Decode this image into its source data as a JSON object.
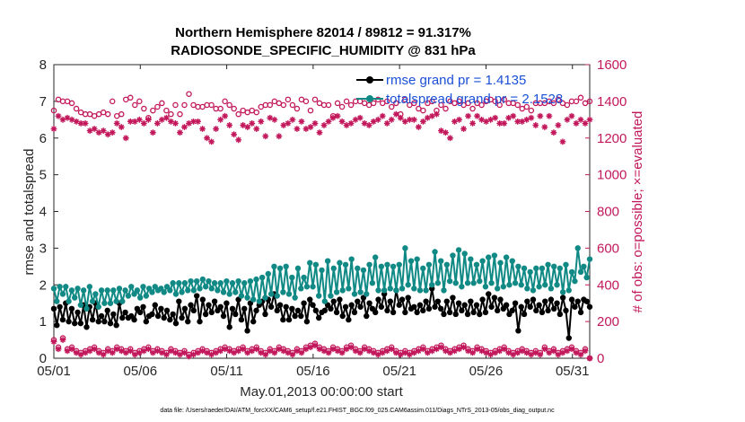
{
  "chart_data": {
    "type": "line",
    "title_line1": "Northern Hemisphere 82014 / 89812 = 91.317%",
    "title_line2": "RADIOSONDE_SPECIFIC_HUMIDITY @ 831 hPa",
    "xlabel": "May.01,2013 00:00:00 start",
    "ylabel_left": "rmse and totalspread",
    "ylabel_right": "# of obs: o=possible; ×=evaluated",
    "footer": "data file: /Users/raeder/DAI/ATM_forcXX/CAM6_setup/f.e21.FHIST_BGC.f09_025.CAM6assim.011/Diags_NTrS_2013-05/obs_diag_output.nc",
    "x_range": [
      1,
      32
    ],
    "ylim_left": [
      0,
      8
    ],
    "ylim_right": [
      0,
      1600
    ],
    "x_ticks": [
      {
        "value": 1,
        "label": "05/01"
      },
      {
        "value": 6,
        "label": "05/06"
      },
      {
        "value": 11,
        "label": "05/11"
      },
      {
        "value": 16,
        "label": "05/16"
      },
      {
        "value": 21,
        "label": "05/21"
      },
      {
        "value": 26,
        "label": "05/26"
      },
      {
        "value": 31,
        "label": "05/31"
      }
    ],
    "y_ticks_left": [
      "0",
      "1",
      "2",
      "3",
      "4",
      "5",
      "6",
      "7",
      "8"
    ],
    "y_ticks_right": [
      "0",
      "200",
      "400",
      "600",
      "800",
      "1000",
      "1200",
      "1400",
      "1600"
    ],
    "legend": [
      {
        "label": "rmse grand pr = 1.4135",
        "color": "#000000"
      },
      {
        "label": "totalspread grand pr = 2.1528",
        "color": "#118a86"
      }
    ],
    "series": [
      {
        "name": "rmse",
        "axis": "left",
        "color": "#000000",
        "values": [
          1.35,
          0.9,
          1.4,
          1.05,
          1.5,
          1.0,
          1.35,
          0.95,
          1.25,
          0.95,
          1.45,
          0.85,
          1.4,
          1.05,
          1.5,
          1.0,
          1.15,
          1.0,
          1.3,
          0.95,
          1.2,
          0.9,
          1.5,
          1.1,
          1.25,
          1.1,
          1.15,
          1.05,
          1.35,
          1.25,
          1.4,
          1.0,
          1.15,
          1.2,
          1.45,
          1.15,
          1.35,
          1.1,
          1.3,
          1.05,
          1.2,
          0.95,
          1.55,
          1.1,
          1.35,
          1.0,
          1.45,
          1.3,
          1.7,
          1.0,
          1.6,
          1.2,
          1.45,
          1.25,
          1.55,
          1.3,
          1.4,
          1.15,
          1.5,
          0.85,
          1.35,
          1.2,
          1.6,
          1.05,
          1.35,
          0.75,
          1.5,
          1.0,
          1.3,
          1.45,
          1.55,
          1.2,
          1.6,
          1.4,
          1.75,
          1.3,
          1.45,
          1.05,
          1.4,
          1.05,
          1.35,
          1.15,
          1.3,
          1.15,
          1.5,
          1.0,
          1.6,
          1.45,
          1.3,
          1.1,
          1.25,
          1.3,
          1.45,
          1.35,
          1.55,
          1.25,
          1.6,
          1.15,
          1.4,
          1.05,
          1.45,
          1.25,
          1.55,
          1.4,
          1.65,
          1.15,
          1.5,
          1.35,
          1.25,
          1.6,
          1.4,
          1.75,
          1.3,
          1.55,
          1.25,
          1.85,
          1.45,
          1.6,
          1.25,
          1.65,
          1.35,
          1.4,
          1.25,
          1.45,
          1.3,
          1.55,
          1.35,
          1.9,
          1.4,
          1.55,
          1.35,
          1.2,
          1.55,
          1.25,
          1.65,
          1.2,
          1.5,
          1.3,
          1.45,
          1.2,
          1.55,
          1.25,
          1.45,
          1.2,
          1.6,
          1.25,
          1.75,
          1.4,
          1.65,
          1.3,
          1.6,
          1.35,
          1.45,
          1.2,
          1.3,
          1.5,
          0.75,
          1.4,
          1.2,
          1.55,
          1.4,
          1.6,
          1.3,
          1.45,
          1.25,
          1.55,
          1.3,
          1.6,
          1.35,
          1.5,
          1.2,
          1.65,
          1.3,
          0.55,
          1.6,
          1.4,
          1.55,
          1.25,
          1.6,
          1.55,
          1.4
        ]
      },
      {
        "name": "totalspread",
        "axis": "left",
        "color": "#118a86",
        "values": [
          1.9,
          1.55,
          1.95,
          1.75,
          1.95,
          1.55,
          1.85,
          1.65,
          1.9,
          1.45,
          1.85,
          1.35,
          1.95,
          1.55,
          1.75,
          1.4,
          1.85,
          1.5,
          1.85,
          1.5,
          1.85,
          1.55,
          1.9,
          1.55,
          1.85,
          1.7,
          1.95,
          1.75,
          1.85,
          1.65,
          1.95,
          1.7,
          1.9,
          1.8,
          1.95,
          1.85,
          1.9,
          1.8,
          1.95,
          1.85,
          2.05,
          1.75,
          2.05,
          1.8,
          2.05,
          1.85,
          2.1,
          1.85,
          2.1,
          1.9,
          2.15,
          1.95,
          2.1,
          1.9,
          2.05,
          1.85,
          2.05,
          1.8,
          2.1,
          1.75,
          2.05,
          1.8,
          2.1,
          1.7,
          2.05,
          1.65,
          2.1,
          1.6,
          2.15,
          1.55,
          2.2,
          1.65,
          2.3,
          1.75,
          2.5,
          1.7,
          2.45,
          1.8,
          2.5,
          1.75,
          2.2,
          1.65,
          2.45,
          1.9,
          2.2,
          1.95,
          2.6,
          1.95,
          2.55,
          1.7,
          2.4,
          1.55,
          2.65,
          1.7,
          2.45,
          1.8,
          2.6,
          1.85,
          2.55,
          1.9,
          2.7,
          1.75,
          2.45,
          1.8,
          2.4,
          1.75,
          2.55,
          2.05,
          2.75,
          1.85,
          2.5,
          1.85,
          2.55,
          1.9,
          2.5,
          1.85,
          2.55,
          1.9,
          3.0,
          2.0,
          2.65,
          1.9,
          2.7,
          1.85,
          2.45,
          1.85,
          2.55,
          2.0,
          2.9,
          2.05,
          2.65,
          1.85,
          2.55,
          2.1,
          2.8,
          2.05,
          2.95,
          1.95,
          2.85,
          2.05,
          2.7,
          2.05,
          2.55,
          2.1,
          2.65,
          1.95,
          2.75,
          2.05,
          2.8,
          1.9,
          2.6,
          1.95,
          2.75,
          2.0,
          2.65,
          2.05,
          2.5,
          2.0,
          2.45,
          1.9,
          2.35,
          1.85,
          2.45,
          1.95,
          2.45,
          2.0,
          2.55,
          1.9,
          2.5,
          2.0,
          2.45,
          1.8,
          2.55,
          1.85,
          2.35,
          2.1,
          3.0,
          2.35,
          2.5,
          2.2,
          2.7
        ]
      },
      {
        "name": "possible",
        "axis": "right",
        "color": "#c2185b",
        "marker": "circle",
        "values": [
          1350,
          1410,
          1400,
          1400,
          1390,
          1360,
          1340,
          1330,
          1330,
          1320,
          1330,
          1340,
          1330,
          1400,
          1320,
          1330,
          1410,
          1420,
          1380,
          1400,
          1360,
          1310,
          1350,
          1370,
          1390,
          1350,
          1330,
          1380,
          1330,
          1380,
          1440,
          1380,
          1370,
          1370,
          1380,
          1380,
          1360,
          1360,
          1400,
          1380,
          1360,
          1330,
          1350,
          1340,
          1350,
          1340,
          1370,
          1380,
          1380,
          1400,
          1390,
          1380,
          1410,
          1380,
          1360,
          1410,
          1400,
          1350,
          1410,
          1390,
          1380,
          1380,
          1320,
          1390,
          1370,
          1400,
          1380,
          1400,
          1400,
          1390,
          1380,
          1390,
          1410,
          1390,
          1400,
          1370,
          1390,
          1330,
          1410,
          1380,
          1390,
          1360,
          1350,
          1390,
          1400,
          1350,
          1380,
          1360,
          1400,
          1390,
          1400,
          1380,
          1390,
          1360,
          1390,
          1380,
          1400,
          1410,
          1400,
          1380,
          1410,
          1390,
          1390,
          1380,
          1360,
          1370,
          1350,
          1390,
          1390,
          1390,
          1400,
          1390,
          1410,
          1390,
          1380,
          1400,
          1400,
          1420,
          1390,
          1400
        ]
      },
      {
        "name": "evaluated",
        "axis": "right",
        "color": "#c2185b",
        "marker": "asterisk",
        "values": [
          1250,
          1320,
          1300,
          1310,
          1300,
          1290,
          1280,
          1280,
          1240,
          1250,
          1230,
          1240,
          1220,
          1230,
          1280,
          1260,
          1200,
          1290,
          1290,
          1300,
          1280,
          1300,
          1230,
          1280,
          1300,
          1310,
          1290,
          1280,
          1230,
          1260,
          1280,
          1290,
          1290,
          1250,
          1200,
          1180,
          1250,
          1300,
          1320,
          1270,
          1220,
          1190,
          1270,
          1260,
          1280,
          1250,
          1290,
          1210,
          1310,
          1300,
          1210,
          1270,
          1280,
          1300,
          1250,
          1290,
          1250,
          1260,
          1280,
          1230,
          1270,
          1290,
          1310,
          1320,
          1290,
          1270,
          1280,
          1300,
          1310,
          1280,
          1270,
          1290,
          1300,
          1320,
          1280,
          1300,
          1330,
          1310,
          1290,
          1300,
          1300,
          1260,
          1290,
          1310,
          1320,
          1330,
          1240,
          1230,
          1200,
          1290,
          1300,
          1250,
          1320,
          1280,
          1320,
          1300,
          1290,
          1300,
          1310,
          1280,
          1280,
          1310,
          1320,
          1290,
          1290,
          1300,
          1310,
          1270,
          1320,
          1260,
          1320,
          1230,
          1270,
          1180,
          1300,
          1320,
          1280,
          1300,
          1280,
          1300
        ]
      },
      {
        "name": "possible_minus_evaluated_possible",
        "axis": "right",
        "color": "#c2185b",
        "marker": "circle",
        "values": [
          100,
          60,
          110,
          50,
          60,
          40,
          30,
          40,
          50,
          60,
          40,
          30,
          50,
          40,
          60,
          50,
          40,
          50,
          30,
          40,
          50,
          60,
          40,
          50,
          40,
          30,
          50,
          40,
          30,
          40,
          20,
          30,
          40,
          50,
          40,
          30,
          40,
          50,
          60,
          50,
          40,
          50,
          60,
          40,
          50,
          60,
          40,
          30,
          50,
          40,
          60,
          50,
          40,
          30,
          50,
          40,
          60,
          70,
          80,
          60,
          50,
          40,
          60,
          50,
          40,
          60,
          70,
          50,
          40,
          60,
          50,
          40,
          30,
          40,
          50,
          60,
          40,
          30,
          40,
          30,
          40,
          50,
          60,
          40,
          50,
          60,
          70,
          50,
          40,
          50,
          60,
          70,
          50,
          40,
          60,
          50,
          40,
          30,
          40,
          50,
          60,
          40,
          30,
          40,
          50,
          40,
          30,
          40,
          30,
          60,
          40,
          50,
          30,
          40,
          50,
          60,
          40,
          30,
          50,
          0
        ]
      },
      {
        "name": "possible_minus_evaluated_evaluated",
        "axis": "right",
        "color": "#c2185b",
        "marker": "asterisk",
        "values": [
          90,
          50,
          100,
          40,
          50,
          30,
          20,
          30,
          40,
          50,
          30,
          20,
          40,
          30,
          50,
          40,
          30,
          40,
          20,
          30,
          40,
          50,
          30,
          40,
          30,
          20,
          40,
          30,
          20,
          30,
          10,
          20,
          30,
          40,
          30,
          20,
          30,
          40,
          50,
          40,
          30,
          40,
          50,
          30,
          40,
          50,
          30,
          20,
          40,
          30,
          50,
          40,
          30,
          20,
          40,
          30,
          50,
          60,
          70,
          50,
          40,
          30,
          50,
          40,
          30,
          50,
          60,
          40,
          30,
          50,
          40,
          30,
          20,
          30,
          40,
          50,
          30,
          20,
          30,
          20,
          30,
          40,
          50,
          30,
          40,
          50,
          60,
          40,
          30,
          40,
          50,
          60,
          40,
          30,
          50,
          40,
          30,
          20,
          30,
          40,
          50,
          30,
          20,
          30,
          40,
          30,
          20,
          30,
          20,
          50,
          30,
          40,
          20,
          30,
          40,
          50,
          30,
          20,
          40,
          0
        ]
      }
    ]
  }
}
